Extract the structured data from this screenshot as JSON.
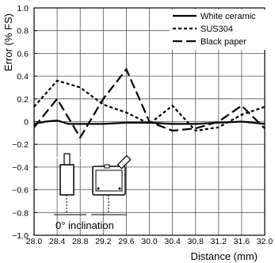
{
  "chart_data": {
    "type": "line",
    "xlabel": "Distance (mm)",
    "ylabel": "Error (% FS)",
    "x": [
      28.0,
      28.4,
      28.8,
      29.2,
      29.6,
      30.0,
      30.4,
      30.8,
      31.2,
      31.6,
      32.0
    ],
    "xlim": [
      28.0,
      32.0
    ],
    "ylim": [
      -1.0,
      1.0
    ],
    "xticks": [
      "28.0",
      "28.4",
      "28.8",
      "29.2",
      "29.6",
      "30.0",
      "30.4",
      "30.8",
      "31.2",
      "31.6",
      "32.0"
    ],
    "yticks": [
      "1.0",
      "0.8",
      "0.6",
      "0.4",
      "0.2",
      "0",
      "−0.2",
      "−0.4",
      "−0.6",
      "−0.8",
      "−1.0"
    ],
    "ytick_values": [
      1.0,
      0.8,
      0.6,
      0.4,
      0.2,
      0,
      -0.2,
      -0.4,
      -0.6,
      -0.8,
      -1.0
    ],
    "grid": true,
    "legend_position": "top-right",
    "series": [
      {
        "name": "White ceramic",
        "style": "solid",
        "color": "#000000",
        "points": [
          [
            28.0,
            -0.02
          ],
          [
            28.2,
            0.0
          ],
          [
            28.4,
            0.01
          ],
          [
            28.6,
            -0.02
          ],
          [
            28.8,
            -0.02
          ],
          [
            29.2,
            -0.02
          ],
          [
            29.6,
            -0.01
          ],
          [
            30.0,
            -0.01
          ],
          [
            30.4,
            -0.02
          ],
          [
            30.8,
            -0.02
          ],
          [
            31.2,
            -0.01
          ],
          [
            31.6,
            0.0
          ],
          [
            31.8,
            -0.01
          ],
          [
            32.0,
            -0.02
          ]
        ]
      },
      {
        "name": "SUS304",
        "style": "dotted",
        "color": "#000000",
        "points": [
          [
            28.0,
            0.13
          ],
          [
            28.4,
            0.36
          ],
          [
            28.8,
            0.3
          ],
          [
            29.2,
            0.15
          ],
          [
            29.6,
            0.08
          ],
          [
            30.0,
            -0.02
          ],
          [
            30.4,
            0.14
          ],
          [
            30.8,
            -0.08
          ],
          [
            31.2,
            -0.05
          ],
          [
            31.6,
            0.06
          ],
          [
            32.0,
            0.13
          ]
        ]
      },
      {
        "name": "Black paper",
        "style": "dashed",
        "color": "#000000",
        "points": [
          [
            28.0,
            -0.05
          ],
          [
            28.4,
            0.2
          ],
          [
            28.8,
            -0.14
          ],
          [
            29.2,
            0.2
          ],
          [
            29.6,
            0.46
          ],
          [
            30.0,
            0.0
          ],
          [
            30.4,
            -0.08
          ],
          [
            30.8,
            -0.06
          ],
          [
            31.2,
            0.0
          ],
          [
            31.6,
            0.14
          ],
          [
            32.0,
            -0.06
          ]
        ]
      }
    ],
    "inset": {
      "label": "0° inclination"
    }
  }
}
